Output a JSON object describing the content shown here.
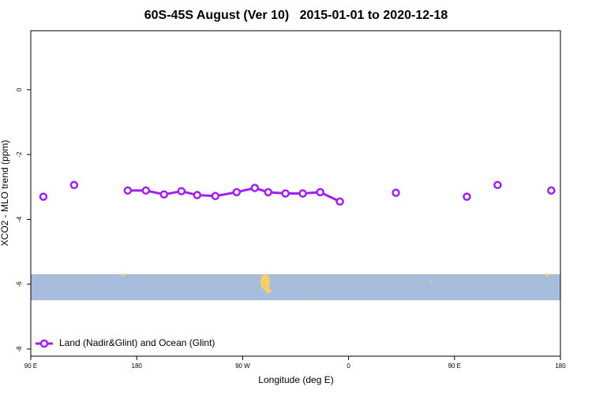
{
  "chart_data": {
    "type": "line",
    "title": "60S-45S August (Ver 10)   2015-01-01 to 2020-12-18",
    "x_label": "Longitude (deg E)",
    "y_label": "XCO2 - MLO trend (ppm)",
    "x": [
      100.7,
      null,
      126.8,
      null,
      172.4,
      187.8,
      203.2,
      218,
      231.4,
      246.8,
      264.9,
      280.3,
      291.7,
      306.4,
      321.1,
      335.9,
      352.6,
      null,
      400.2,
      null,
      460.5,
      null,
      486.6,
      null,
      532.2
    ],
    "series": [
      {
        "name": "Land (Nadir&Glint) and Ocean (Glint)",
        "color": "#a020f0",
        "values": [
          -3.3,
          null,
          -2.94,
          null,
          -3.11,
          -3.11,
          -3.23,
          -3.13,
          -3.25,
          -3.28,
          -3.16,
          -3.03,
          -3.16,
          -3.2,
          -3.2,
          -3.16,
          -3.45,
          null,
          -3.18,
          null,
          -3.3,
          null,
          -2.94,
          null,
          -3.11
        ]
      }
    ],
    "xlim": [
      90,
      540
    ],
    "ylim": [
      -8.22,
      1.82
    ],
    "xticks": [
      {
        "value": 90,
        "label": "90 E"
      },
      180,
      {
        "value": 270,
        "label": "90 W"
      },
      {
        "value": 360,
        "label": "0"
      },
      {
        "value": 450,
        "label": "90 E"
      },
      {
        "value": 540,
        "label": "180"
      }
    ],
    "yticks": [
      -8,
      -6,
      -4,
      -2,
      0
    ],
    "legend": "bottom-left"
  }
}
